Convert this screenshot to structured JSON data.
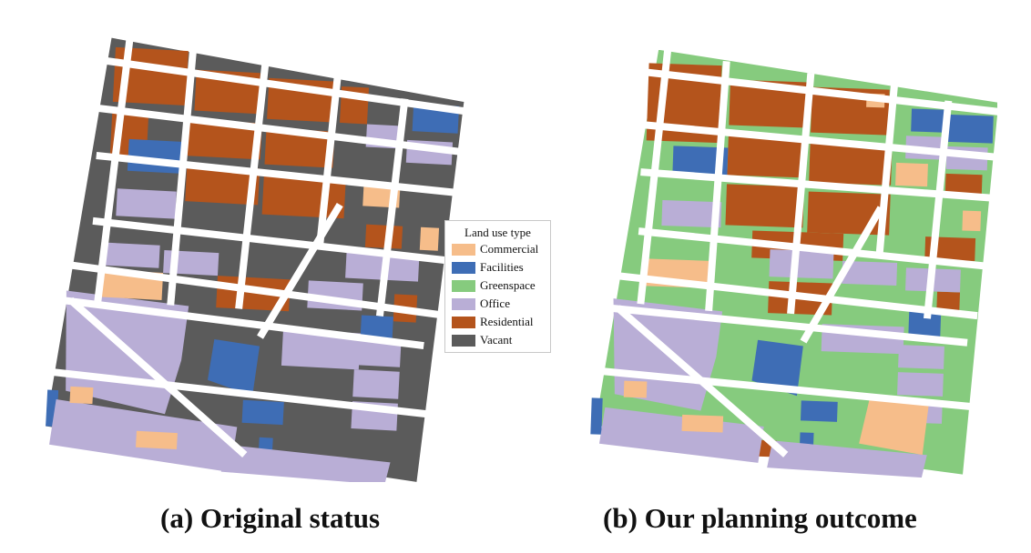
{
  "captions": {
    "a": "(a) Original status",
    "b": "(b) Our planning outcome"
  },
  "legend": {
    "title": "Land use type",
    "items": [
      {
        "label": "Commercial",
        "color": "#f6bd8a"
      },
      {
        "label": "Facilities",
        "color": "#3e6db5"
      },
      {
        "label": "Greenspace",
        "color": "#86cb7e"
      },
      {
        "label": "Office",
        "color": "#b9aed6"
      },
      {
        "label": "Residential",
        "color": "#b4541c"
      },
      {
        "label": "Vacant",
        "color": "#5b5b5b"
      }
    ]
  },
  "colors": {
    "road": "#ffffff",
    "commercial": "#f6bd8a",
    "facilities": "#3e6db5",
    "greenspace": "#86cb7e",
    "office": "#b9aed6",
    "residential": "#b4541c",
    "vacant": "#5b5b5b"
  }
}
